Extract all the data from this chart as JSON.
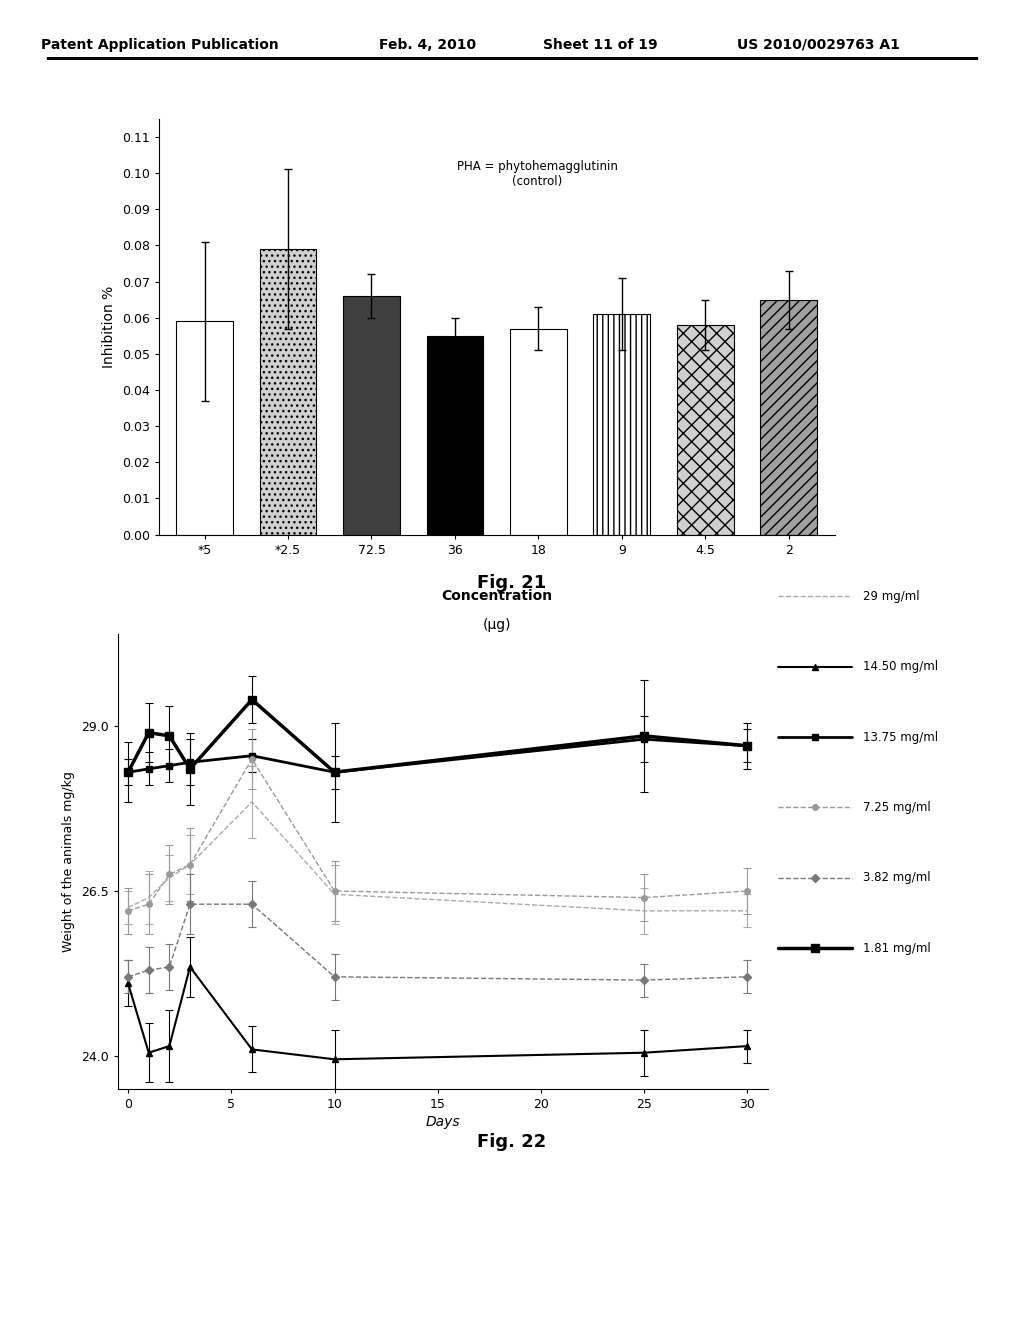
{
  "fig21": {
    "categories": [
      "*5",
      "*2.5",
      "72.5",
      "36",
      "18",
      "9",
      "4.5",
      "2"
    ],
    "values": [
      0.059,
      0.079,
      0.066,
      0.055,
      0.057,
      0.061,
      0.058,
      0.065
    ],
    "errors": [
      0.022,
      0.022,
      0.006,
      0.005,
      0.006,
      0.01,
      0.007,
      0.008
    ],
    "xlabel_line1": "Concentration",
    "xlabel_line2": "(μg)",
    "ylabel": "Inhibition %",
    "ylim": [
      0.0,
      0.115
    ],
    "yticks": [
      0.0,
      0.01,
      0.02,
      0.03,
      0.04,
      0.05,
      0.06,
      0.07,
      0.08,
      0.09,
      0.1,
      0.11
    ],
    "annotation": "PHA = phytohemagglutinin\n(control)",
    "fig_label": "Fig. 21"
  },
  "fig22": {
    "days": [
      0,
      1,
      2,
      3,
      6,
      10,
      25,
      30
    ],
    "series": {
      "29 mg/ml": {
        "values": [
          26.25,
          26.4,
          26.7,
          26.9,
          27.85,
          26.45,
          26.2,
          26.2
        ],
        "errors": [
          0.25,
          0.4,
          0.35,
          0.45,
          0.55,
          0.45,
          0.35,
          0.25
        ]
      },
      "14.50 mg/ml": {
        "values": [
          25.1,
          24.05,
          24.15,
          25.35,
          24.1,
          23.95,
          24.05,
          24.15
        ],
        "errors": [
          0.35,
          0.45,
          0.55,
          0.45,
          0.35,
          0.45,
          0.35,
          0.25
        ]
      },
      "13.75 mg/ml": {
        "values": [
          28.3,
          28.35,
          28.4,
          28.45,
          28.55,
          28.3,
          28.8,
          28.7
        ],
        "errors": [
          0.2,
          0.25,
          0.25,
          0.35,
          0.25,
          0.25,
          0.35,
          0.25
        ]
      },
      "7.25 mg/ml": {
        "values": [
          26.2,
          26.3,
          26.75,
          26.9,
          28.5,
          26.5,
          26.4,
          26.5
        ],
        "errors": [
          0.35,
          0.45,
          0.45,
          0.55,
          0.45,
          0.45,
          0.35,
          0.35
        ]
      },
      "3.82 mg/ml": {
        "values": [
          25.2,
          25.3,
          25.35,
          26.3,
          26.3,
          25.2,
          25.15,
          25.2
        ],
        "errors": [
          0.25,
          0.35,
          0.35,
          0.45,
          0.35,
          0.35,
          0.25,
          0.25
        ]
      },
      "1.81 mg/ml": {
        "values": [
          28.3,
          28.9,
          28.85,
          28.35,
          29.4,
          28.3,
          28.85,
          28.7
        ],
        "errors": [
          0.45,
          0.45,
          0.45,
          0.55,
          0.35,
          0.75,
          0.85,
          0.35
        ]
      }
    },
    "xlabel": "Days",
    "ylabel": "Weight of the animals mg/kg",
    "ylim": [
      23.5,
      30.4
    ],
    "yticks": [
      24.0,
      26.5,
      29.0
    ],
    "xticks": [
      0,
      5,
      10,
      15,
      20,
      25,
      30
    ],
    "fig_label": "Fig. 22"
  },
  "background_color": "#ffffff"
}
